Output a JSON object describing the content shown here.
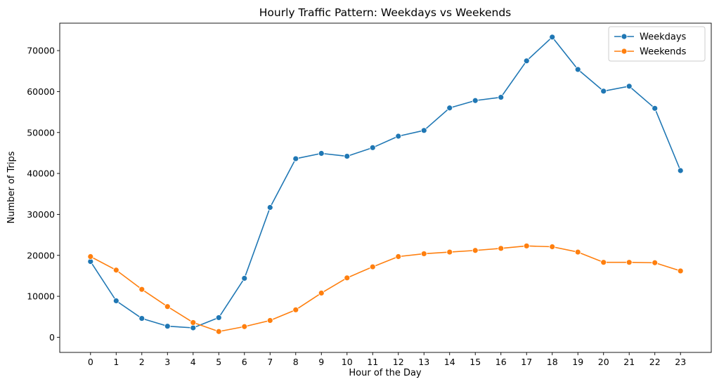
{
  "chart_data": {
    "type": "line",
    "title": "Hourly Traffic Pattern: Weekdays vs Weekends",
    "xlabel": "Hour of the Day",
    "ylabel": "Number of Trips",
    "x": [
      0,
      1,
      2,
      3,
      4,
      5,
      6,
      7,
      8,
      9,
      10,
      11,
      12,
      13,
      14,
      15,
      16,
      17,
      18,
      19,
      20,
      21,
      22,
      23
    ],
    "xlim": [
      -1.2,
      24.2
    ],
    "ylim": [
      -3700,
      76700
    ],
    "yticks": [
      0,
      10000,
      20000,
      30000,
      40000,
      50000,
      60000,
      70000
    ],
    "grid": false,
    "legend_position": "top-right",
    "series": [
      {
        "name": "Weekdays",
        "color": "#1f77b4",
        "values": [
          18500,
          8900,
          4600,
          2700,
          2300,
          4800,
          14400,
          31700,
          43600,
          44900,
          44200,
          46300,
          49100,
          50500,
          56000,
          57800,
          58600,
          67500,
          73300,
          65400,
          60100,
          61300,
          55900,
          40700
        ]
      },
      {
        "name": "Weekends",
        "color": "#ff7f0e",
        "values": [
          19700,
          16400,
          11700,
          7500,
          3600,
          1400,
          2600,
          4100,
          6700,
          10800,
          14500,
          17200,
          19700,
          20400,
          20800,
          21200,
          21700,
          22300,
          22100,
          20800,
          18300,
          18300,
          18200,
          16200
        ]
      }
    ]
  }
}
